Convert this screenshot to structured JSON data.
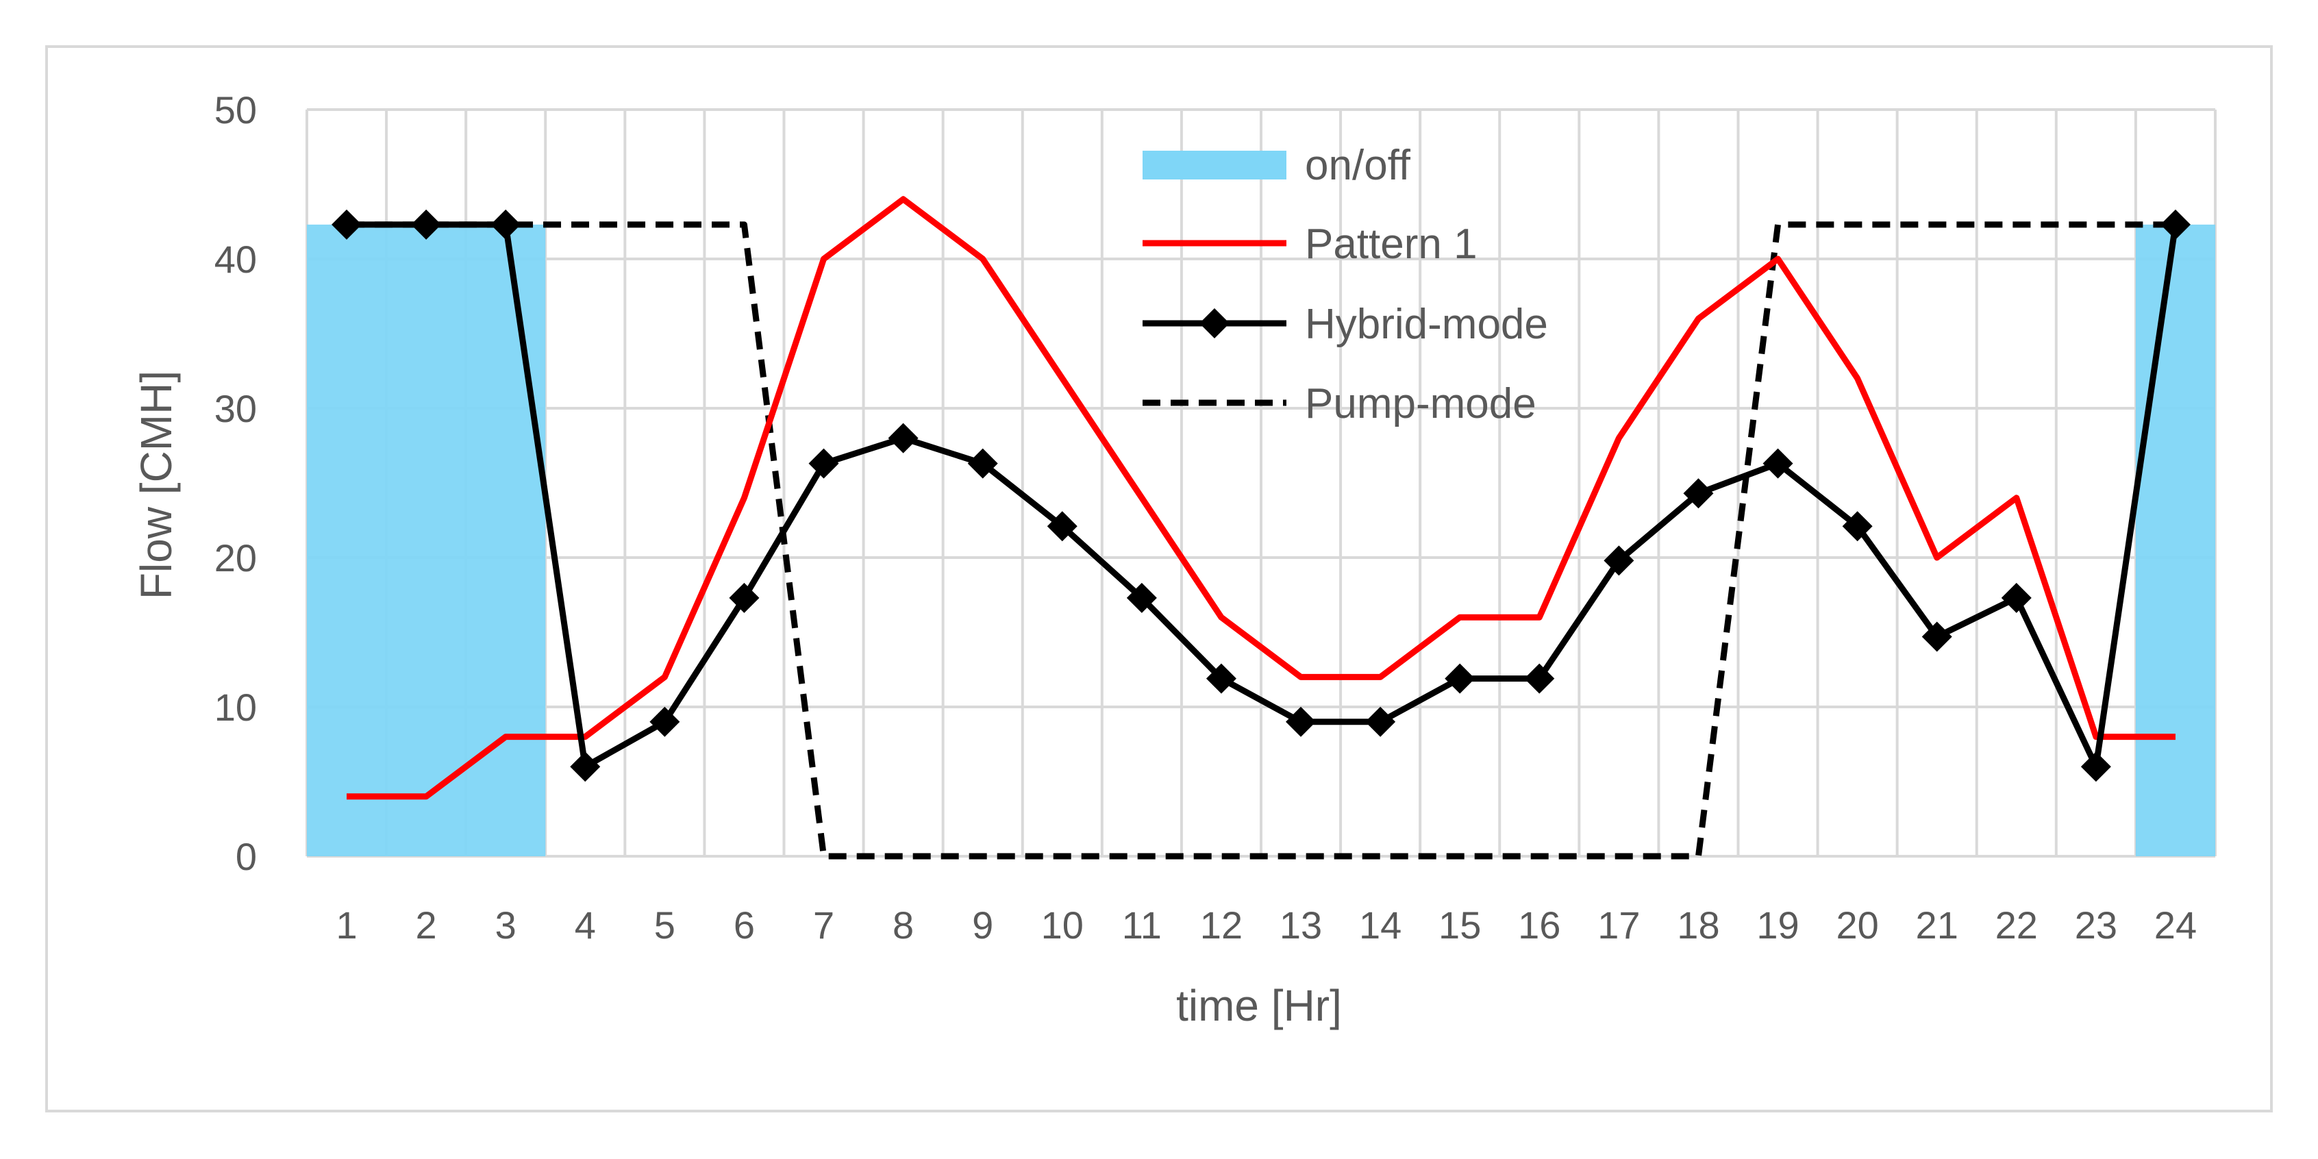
{
  "chart_data": {
    "type": "line",
    "title": "",
    "xlabel": "time [Hr]",
    "ylabel": "Flow [CMH]",
    "ylim": [
      0,
      50
    ],
    "yticks": [
      0,
      10,
      20,
      30,
      40,
      50
    ],
    "grid": true,
    "legend_position": "top-center",
    "categories": [
      "1",
      "2",
      "3",
      "4",
      "5",
      "6",
      "7",
      "8",
      "9",
      "10",
      "11",
      "12",
      "13",
      "14",
      "15",
      "16",
      "17",
      "18",
      "19",
      "20",
      "21",
      "22",
      "23",
      "24"
    ],
    "bands": {
      "name": "on/off",
      "color": "#7fd6f7",
      "value": 42.3,
      "ranges": [
        [
          "1",
          "3"
        ],
        [
          "24",
          "24"
        ]
      ]
    },
    "series": [
      {
        "name": "Pattern 1",
        "color": "#ff0000",
        "style": "solid",
        "marker": "none",
        "values": [
          4,
          4,
          8,
          8,
          12,
          24,
          40,
          44,
          40,
          32,
          24,
          16,
          12,
          12,
          16,
          16,
          28,
          36,
          40,
          32,
          20,
          24,
          8,
          8
        ]
      },
      {
        "name": "Hybrid-mode",
        "color": "#000000",
        "style": "solid",
        "marker": "diamond",
        "values": [
          42.3,
          42.3,
          42.3,
          6,
          9,
          17.3,
          26.3,
          28,
          26.3,
          22.1,
          17.3,
          11.9,
          9,
          9,
          11.9,
          11.9,
          19.8,
          24.3,
          26.3,
          22.1,
          14.7,
          17.3,
          6,
          42.3
        ]
      },
      {
        "name": "Pump-mode",
        "color": "#000000",
        "style": "dashed",
        "marker": "none",
        "values": [
          42.3,
          42.3,
          42.3,
          42.3,
          42.3,
          42.3,
          0,
          0,
          0,
          0,
          0,
          0,
          0,
          0,
          0,
          0,
          0,
          0,
          42.3,
          42.3,
          42.3,
          42.3,
          42.3,
          42.3
        ]
      }
    ]
  }
}
